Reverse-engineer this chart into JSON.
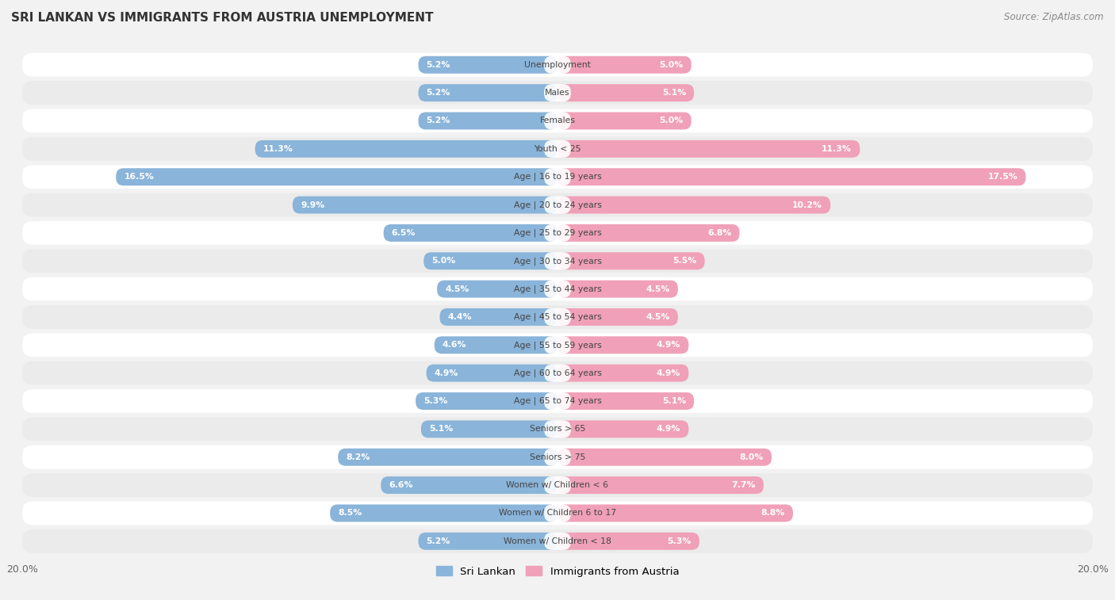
{
  "title": "SRI LANKAN VS IMMIGRANTS FROM AUSTRIA UNEMPLOYMENT",
  "source": "Source: ZipAtlas.com",
  "categories": [
    "Unemployment",
    "Males",
    "Females",
    "Youth < 25",
    "Age | 16 to 19 years",
    "Age | 20 to 24 years",
    "Age | 25 to 29 years",
    "Age | 30 to 34 years",
    "Age | 35 to 44 years",
    "Age | 45 to 54 years",
    "Age | 55 to 59 years",
    "Age | 60 to 64 years",
    "Age | 65 to 74 years",
    "Seniors > 65",
    "Seniors > 75",
    "Women w/ Children < 6",
    "Women w/ Children 6 to 17",
    "Women w/ Children < 18"
  ],
  "sri_lankan": [
    5.2,
    5.2,
    5.2,
    11.3,
    16.5,
    9.9,
    6.5,
    5.0,
    4.5,
    4.4,
    4.6,
    4.9,
    5.3,
    5.1,
    8.2,
    6.6,
    8.5,
    5.2
  ],
  "immigrants_austria": [
    5.0,
    5.1,
    5.0,
    11.3,
    17.5,
    10.2,
    6.8,
    5.5,
    4.5,
    4.5,
    4.9,
    4.9,
    5.1,
    4.9,
    8.0,
    7.7,
    8.8,
    5.3
  ],
  "sri_lankan_color": "#8ab4d9",
  "immigrants_color": "#f0a0b8",
  "axis_limit": 20.0,
  "bg_color": "#f2f2f2",
  "row_color_odd": "#f9f9f9",
  "row_color_even": "#e8e8e8",
  "label_bg_color": "#f0f0f0"
}
